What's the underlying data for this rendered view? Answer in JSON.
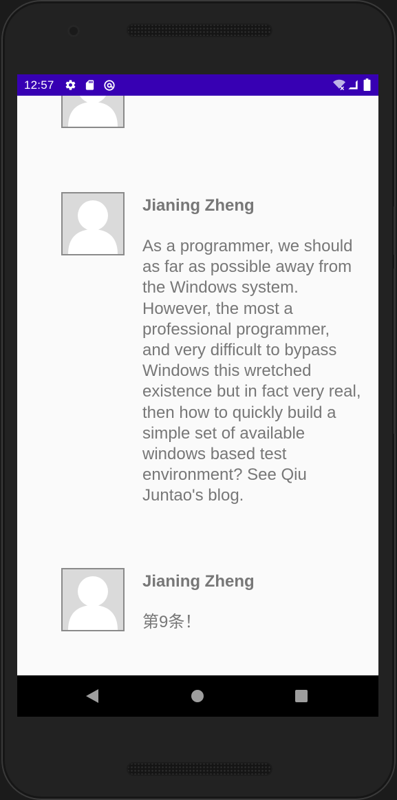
{
  "status_bar": {
    "time": "12:57",
    "left_icons": [
      "gear-icon",
      "sd-card-icon",
      "at-sign-icon"
    ],
    "right_icons": [
      "wifi-no-connection-icon",
      "cellular-signal-icon",
      "battery-icon"
    ],
    "background": "#3700b3"
  },
  "feed": {
    "items": [
      {
        "author": "",
        "text": "",
        "avatar": "default-avatar"
      },
      {
        "author": "Jianing Zheng",
        "text": "As a programmer, we should as far as possible away from the Windows system. However, the most a professional programmer, and very difficult to bypass Windows this wretched existence but in fact very real, then how to quickly build a simple set of available windows based test environment? See Qiu Juntao's blog.",
        "avatar": "default-avatar"
      },
      {
        "author": "Jianing Zheng",
        "text": "第9条！",
        "avatar": "default-avatar"
      }
    ]
  },
  "navigation_bar": {
    "buttons": [
      "back-icon",
      "home-icon",
      "recents-icon"
    ]
  },
  "colors": {
    "screen_background": "#fafafa",
    "text": "#777777",
    "avatar_background": "#dadada"
  }
}
